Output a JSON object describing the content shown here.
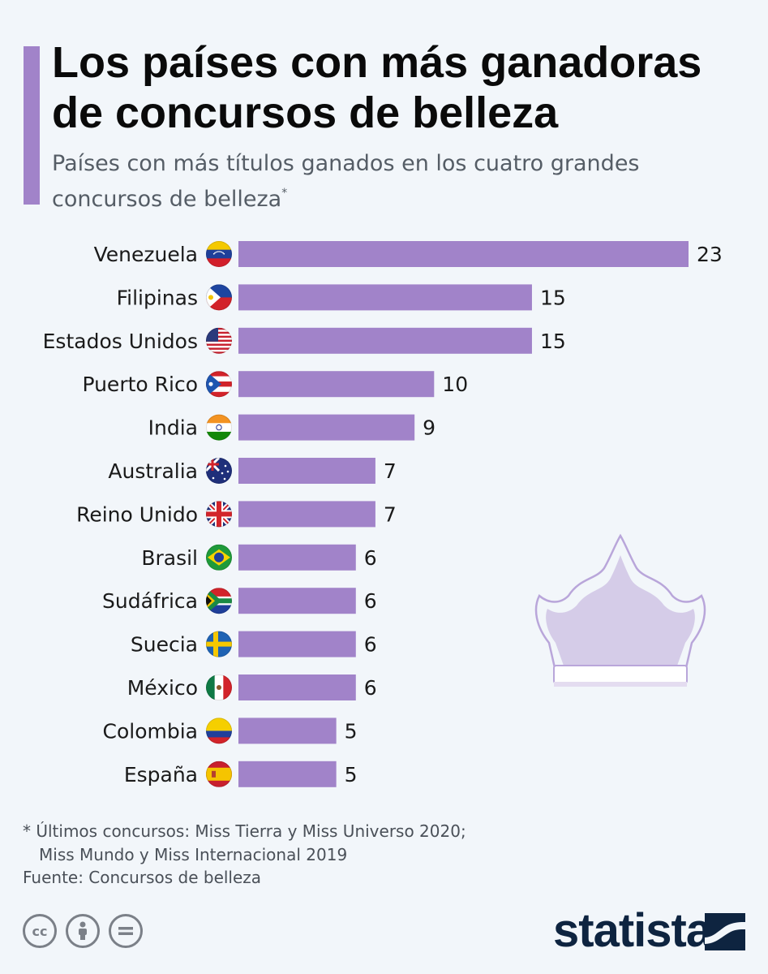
{
  "header": {
    "title": "Los países con más ganadoras de concursos de belleza",
    "subtitle": "Países con más títulos ganados en los cuatro grandes concursos de belleza",
    "subtitle_marker": "*"
  },
  "chart_data": {
    "type": "bar",
    "orientation": "horizontal",
    "categories": [
      "Venezuela",
      "Filipinas",
      "Estados Unidos",
      "Puerto Rico",
      "India",
      "Australia",
      "Reino Unido",
      "Brasil",
      "Sudáfrica",
      "Suecia",
      "México",
      "Colombia",
      "España"
    ],
    "values": [
      23,
      15,
      15,
      10,
      9,
      7,
      7,
      6,
      6,
      6,
      6,
      5,
      5
    ],
    "flag_icons": [
      "venezuela-flag-icon",
      "philippines-flag-icon",
      "usa-flag-icon",
      "puerto-rico-flag-icon",
      "india-flag-icon",
      "australia-flag-icon",
      "uk-flag-icon",
      "brazil-flag-icon",
      "south-africa-flag-icon",
      "sweden-flag-icon",
      "mexico-flag-icon",
      "colombia-flag-icon",
      "spain-flag-icon"
    ],
    "bar_color": "#a183c9",
    "grid": false,
    "legend": "none"
  },
  "footer": {
    "note_line1": "* Últimos concursos: Miss Tierra y Miss Universo 2020;",
    "note_line2": "Miss Mundo y Miss Internacional 2019",
    "source": "Fuente: Concursos de belleza",
    "license_icons": [
      "cc-icon",
      "attribution-icon",
      "no-derivatives-icon"
    ],
    "brand": "statista"
  },
  "colors": {
    "accent": "#a183c9",
    "background": "#f2f6fa",
    "crown_fill": "#d5cce8",
    "brand": "#0e2440"
  },
  "decoration": {
    "icon": "crown-icon"
  }
}
